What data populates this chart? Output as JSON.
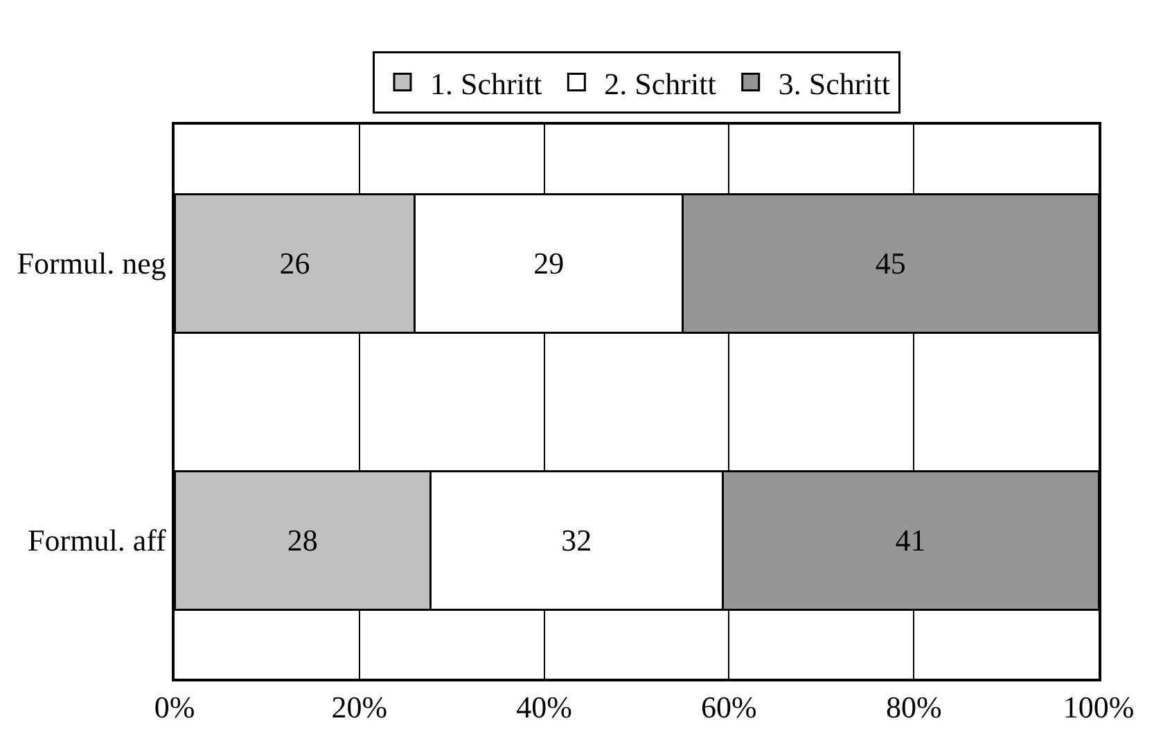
{
  "chart_data": {
    "type": "bar",
    "orientation": "horizontal",
    "stacked": true,
    "categories": [
      "Formul. neg",
      "Formul. aff"
    ],
    "series": [
      {
        "name": "1. Schritt",
        "color": "#c0c0c0",
        "values": [
          26,
          27.7
        ],
        "value_labels": [
          "26",
          "28"
        ]
      },
      {
        "name": "2. Schritt",
        "color": "#ffffff",
        "values": [
          29,
          31.6
        ],
        "value_labels": [
          "29",
          "32"
        ]
      },
      {
        "name": "3. Schritt",
        "color": "#969696",
        "values": [
          45,
          40.7
        ],
        "value_labels": [
          "45",
          "41"
        ]
      }
    ],
    "xlim": [
      0,
      100
    ],
    "xticks": [
      {
        "value": 0,
        "label": "0%"
      },
      {
        "value": 20,
        "label": "20%"
      },
      {
        "value": 40,
        "label": "40%"
      },
      {
        "value": 60,
        "label": "60%"
      },
      {
        "value": 80,
        "label": "80%"
      },
      {
        "value": 100,
        "label": "100%"
      }
    ],
    "grid": "x",
    "legend": "top"
  }
}
